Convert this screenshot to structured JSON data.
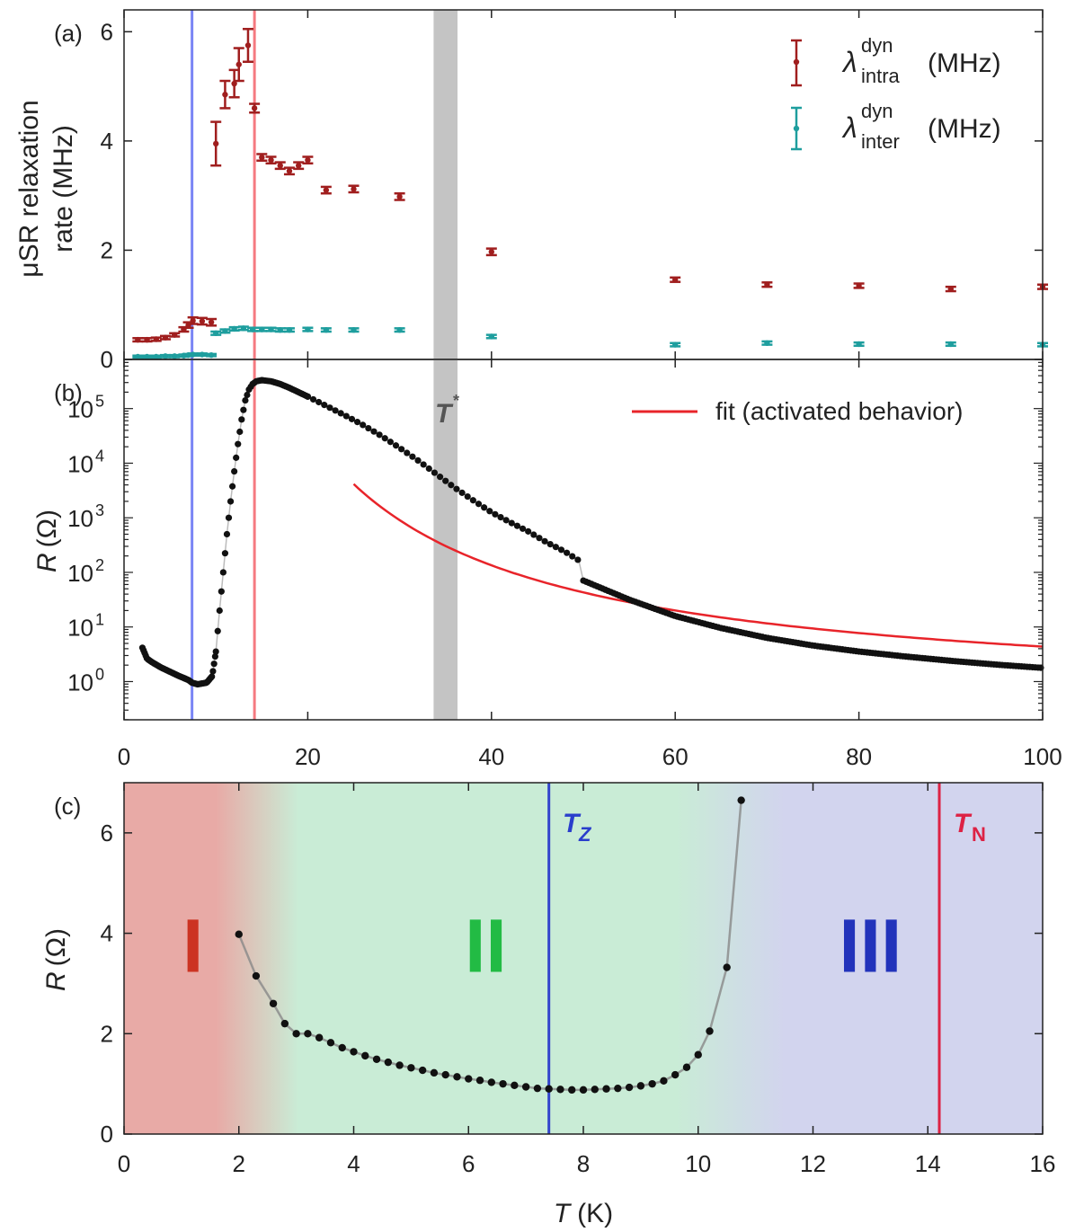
{
  "figure": {
    "panels": {
      "a": {
        "label": "(a)"
      },
      "b": {
        "label": "(b)"
      },
      "c": {
        "label": "(c)"
      }
    }
  },
  "chart_data": [
    {
      "panel": "a",
      "type": "scatter",
      "ylabel_line1": "μSR relaxation",
      "ylabel_line2": "rate (MHz)",
      "xlim": [
        0,
        100
      ],
      "ylim": [
        0,
        6.4
      ],
      "yticks": [
        0,
        2,
        4,
        6
      ],
      "series": [
        {
          "name": "intra",
          "legend": {
            "symbol": "λ",
            "sup": "dyn",
            "sub": "intra",
            "unit": "(MHz)"
          },
          "color": "#a01e1e",
          "points": [
            [
              1.5,
              0.36,
              0.03
            ],
            [
              2.5,
              0.36,
              0.03
            ],
            [
              3.5,
              0.37,
              0.03
            ],
            [
              4.5,
              0.4,
              0.03
            ],
            [
              5.5,
              0.45,
              0.03
            ],
            [
              6.5,
              0.55,
              0.04
            ],
            [
              7,
              0.63,
              0.05
            ],
            [
              7.5,
              0.71,
              0.06
            ],
            [
              8.5,
              0.7,
              0.06
            ],
            [
              9.5,
              0.68,
              0.06
            ],
            [
              10,
              3.95,
              0.4
            ],
            [
              11,
              4.85,
              0.25
            ],
            [
              12,
              5.05,
              0.25
            ],
            [
              12.5,
              5.4,
              0.3
            ],
            [
              13.5,
              5.75,
              0.3
            ],
            [
              14.2,
              4.6,
              0.08
            ],
            [
              15,
              3.7,
              0.06
            ],
            [
              16,
              3.65,
              0.06
            ],
            [
              17,
              3.55,
              0.06
            ],
            [
              18,
              3.45,
              0.06
            ],
            [
              19,
              3.55,
              0.06
            ],
            [
              20,
              3.65,
              0.06
            ],
            [
              22,
              3.1,
              0.06
            ],
            [
              25,
              3.12,
              0.06
            ],
            [
              30,
              2.98,
              0.06
            ],
            [
              40,
              1.97,
              0.06
            ],
            [
              60,
              1.46,
              0.04
            ],
            [
              70,
              1.37,
              0.04
            ],
            [
              80,
              1.35,
              0.04
            ],
            [
              90,
              1.29,
              0.04
            ],
            [
              100,
              1.33,
              0.04
            ]
          ]
        },
        {
          "name": "inter",
          "legend": {
            "symbol": "λ",
            "sup": "dyn",
            "sub": "inter",
            "unit": "(MHz)"
          },
          "color": "#1e9e9e",
          "points": [
            [
              1.5,
              0.05,
              0.02
            ],
            [
              2.5,
              0.05,
              0.02
            ],
            [
              3.5,
              0.05,
              0.02
            ],
            [
              4.5,
              0.06,
              0.02
            ],
            [
              5.5,
              0.06,
              0.02
            ],
            [
              6.5,
              0.07,
              0.02
            ],
            [
              7,
              0.08,
              0.02
            ],
            [
              7.5,
              0.09,
              0.02
            ],
            [
              8.5,
              0.09,
              0.02
            ],
            [
              9.5,
              0.08,
              0.02
            ],
            [
              10,
              0.48,
              0.03
            ],
            [
              11,
              0.52,
              0.03
            ],
            [
              12,
              0.56,
              0.03
            ],
            [
              13,
              0.57,
              0.03
            ],
            [
              14,
              0.55,
              0.03
            ],
            [
              15,
              0.55,
              0.03
            ],
            [
              16,
              0.55,
              0.03
            ],
            [
              17,
              0.54,
              0.03
            ],
            [
              18,
              0.54,
              0.03
            ],
            [
              20,
              0.55,
              0.03
            ],
            [
              22,
              0.54,
              0.03
            ],
            [
              25,
              0.54,
              0.03
            ],
            [
              30,
              0.54,
              0.03
            ],
            [
              40,
              0.42,
              0.03
            ],
            [
              60,
              0.27,
              0.03
            ],
            [
              70,
              0.3,
              0.03
            ],
            [
              80,
              0.28,
              0.03
            ],
            [
              90,
              0.28,
              0.03
            ],
            [
              100,
              0.27,
              0.03
            ]
          ]
        }
      ]
    },
    {
      "panel": "b",
      "type": "line",
      "yscale": "log",
      "ylabel_main": "R",
      "ylabel_unit": "(Ω)",
      "xlim": [
        0,
        100
      ],
      "ylim_log10": [
        -0.7,
        5.9
      ],
      "ytick_exponents": [
        0,
        1,
        2,
        3,
        4,
        5
      ],
      "xticks": [
        0,
        20,
        40,
        60,
        80,
        100
      ],
      "tstar_label": "T",
      "tstar_sup": "*",
      "tstar_band": [
        33.7,
        36.3
      ],
      "fit_legend": "fit (activated behavior)",
      "fit_color": "#e8242a",
      "fit_model": {
        "type": "activated",
        "c": -0.3516,
        "delta": 99.24,
        "x_start": 25,
        "x_end": 100
      },
      "data_points": [
        [
          2,
          0.62
        ],
        [
          2.5,
          0.42
        ],
        [
          3,
          0.36
        ],
        [
          4,
          0.26
        ],
        [
          5,
          0.18
        ],
        [
          6,
          0.1
        ],
        [
          7,
          0.03
        ],
        [
          7.4,
          -0.02
        ],
        [
          8,
          -0.05
        ],
        [
          9,
          -0.02
        ],
        [
          9.6,
          0.1
        ],
        [
          10,
          0.55
        ],
        [
          10.4,
          1.3
        ],
        [
          10.8,
          2.0
        ],
        [
          11.2,
          2.7
        ],
        [
          11.6,
          3.3
        ],
        [
          12,
          3.85
        ],
        [
          12.4,
          4.35
        ],
        [
          12.8,
          4.8
        ],
        [
          13.2,
          5.15
        ],
        [
          13.6,
          5.35
        ],
        [
          14,
          5.45
        ],
        [
          14.4,
          5.5
        ],
        [
          15,
          5.52
        ],
        [
          16,
          5.5
        ],
        [
          17,
          5.45
        ],
        [
          18,
          5.38
        ],
        [
          19,
          5.3
        ],
        [
          20,
          5.22
        ],
        [
          22,
          5.05
        ],
        [
          24,
          4.88
        ],
        [
          26,
          4.7
        ],
        [
          28,
          4.5
        ],
        [
          30,
          4.28
        ],
        [
          32,
          4.05
        ],
        [
          34,
          3.8
        ],
        [
          36,
          3.55
        ],
        [
          38,
          3.32
        ],
        [
          40,
          3.1
        ],
        [
          42,
          2.92
        ],
        [
          44,
          2.75
        ],
        [
          46,
          2.55
        ],
        [
          48,
          2.38
        ],
        [
          49.5,
          2.22
        ],
        [
          50,
          1.85
        ],
        [
          55,
          1.5
        ],
        [
          60,
          1.2
        ],
        [
          65,
          0.98
        ],
        [
          70,
          0.8
        ],
        [
          75,
          0.66
        ],
        [
          80,
          0.55
        ],
        [
          85,
          0.46
        ],
        [
          90,
          0.38
        ],
        [
          95,
          0.31
        ],
        [
          100,
          0.25
        ]
      ]
    },
    {
      "panel": "c",
      "type": "line",
      "xlabel_main": "T",
      "xlabel_unit": "(K)",
      "ylabel_main": "R",
      "ylabel_unit": "(Ω)",
      "xlim": [
        0,
        16
      ],
      "ylim": [
        0,
        7
      ],
      "xticks": [
        0,
        2,
        4,
        6,
        8,
        10,
        12,
        14,
        16
      ],
      "yticks": [
        0,
        2,
        4,
        6
      ],
      "region_labels": [
        {
          "text": "I",
          "x": 1.2,
          "y": 3.8,
          "color": "#cc3322"
        },
        {
          "text": "II",
          "x": 6.3,
          "y": 3.8,
          "color": "#22bb44"
        },
        {
          "text": "III",
          "x": 13.0,
          "y": 3.8,
          "color": "#2233bb"
        }
      ],
      "points": [
        [
          2.0,
          3.98
        ],
        [
          2.3,
          3.15
        ],
        [
          2.6,
          2.6
        ],
        [
          2.8,
          2.2
        ],
        [
          3.0,
          2.0
        ],
        [
          3.2,
          2.0
        ],
        [
          3.4,
          1.92
        ],
        [
          3.6,
          1.82
        ],
        [
          3.8,
          1.72
        ],
        [
          4.0,
          1.64
        ],
        [
          4.2,
          1.56
        ],
        [
          4.4,
          1.49
        ],
        [
          4.6,
          1.43
        ],
        [
          4.8,
          1.37
        ],
        [
          5.0,
          1.32
        ],
        [
          5.2,
          1.27
        ],
        [
          5.4,
          1.22
        ],
        [
          5.6,
          1.18
        ],
        [
          5.8,
          1.14
        ],
        [
          6.0,
          1.1
        ],
        [
          6.2,
          1.07
        ],
        [
          6.4,
          1.03
        ],
        [
          6.6,
          1.0
        ],
        [
          6.8,
          0.97
        ],
        [
          7.0,
          0.94
        ],
        [
          7.2,
          0.91
        ],
        [
          7.4,
          0.9
        ],
        [
          7.6,
          0.89
        ],
        [
          7.8,
          0.88
        ],
        [
          8.0,
          0.88
        ],
        [
          8.2,
          0.89
        ],
        [
          8.4,
          0.9
        ],
        [
          8.6,
          0.91
        ],
        [
          8.8,
          0.93
        ],
        [
          9.0,
          0.96
        ],
        [
          9.2,
          1.0
        ],
        [
          9.4,
          1.06
        ],
        [
          9.6,
          1.18
        ],
        [
          9.8,
          1.33
        ],
        [
          10.0,
          1.58
        ],
        [
          10.2,
          2.05
        ],
        [
          10.5,
          3.32
        ],
        [
          10.75,
          6.65
        ]
      ]
    }
  ],
  "markers": {
    "tz": {
      "x": 7.4,
      "label_main": "T",
      "label_sub": "Z",
      "color": "#3344cc"
    },
    "tn": {
      "x": 14.2,
      "label_main": "T",
      "label_sub": "N",
      "color": "#dd2244"
    }
  }
}
